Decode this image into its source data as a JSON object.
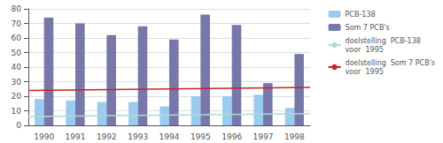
{
  "chart_data": {
    "type": "bar",
    "categories": [
      "1990",
      "1991",
      "1992",
      "1993",
      "1994",
      "1995",
      "1996",
      "1997",
      "1998"
    ],
    "series": [
      {
        "name": "PCB-138",
        "color": "#99ccee",
        "values": [
          18,
          17,
          16,
          16,
          13,
          20,
          20,
          21,
          12
        ]
      },
      {
        "name": "Som 7 PCB's",
        "color": "#7777aa",
        "values": [
          74,
          70,
          62,
          68,
          59,
          76,
          69,
          29,
          49
        ]
      }
    ],
    "goal_lines": [
      {
        "name": "doelstelling  PCB-138\nvoor  1995",
        "color": "#aaddcc",
        "start": 6,
        "end": 8
      },
      {
        "name": "doelstelling  Som 7 PCB's\nvoor  1995",
        "color": "#cc2222",
        "start": 24,
        "end": 26
      }
    ],
    "ylim": [
      0,
      80
    ],
    "yticks": [
      0,
      10,
      20,
      30,
      40,
      50,
      60,
      70,
      80
    ],
    "grid": true,
    "legend": "right"
  }
}
